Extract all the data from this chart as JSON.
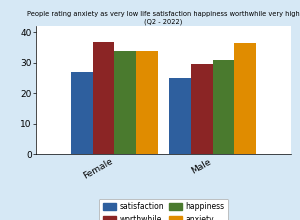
{
  "title": "People rating anxiety as very low life satisfaction happiness worthwhile very high (Q2 - 2022)",
  "categories": [
    "Female",
    "Male"
  ],
  "series": {
    "satisfaction": [
      27.0,
      25.0
    ],
    "worthwhile": [
      37.0,
      29.5
    ],
    "happiness": [
      34.0,
      31.0
    ],
    "anxiety": [
      34.0,
      36.5
    ]
  },
  "colors": {
    "satisfaction": "#2e5f9e",
    "worthwhile": "#8b2525",
    "happiness": "#4a7a2e",
    "anxiety": "#e08c00"
  },
  "ylim": [
    0,
    42
  ],
  "yticks": [
    0,
    10,
    20,
    30,
    40
  ],
  "background_color": "#d6e8f5",
  "legend_order": [
    "satisfaction",
    "worthwhile",
    "happiness",
    "anxiety"
  ],
  "bar_width": 0.12,
  "group_centers": [
    0.18,
    0.72
  ],
  "figsize": [
    3.0,
    2.2
  ],
  "dpi": 100
}
